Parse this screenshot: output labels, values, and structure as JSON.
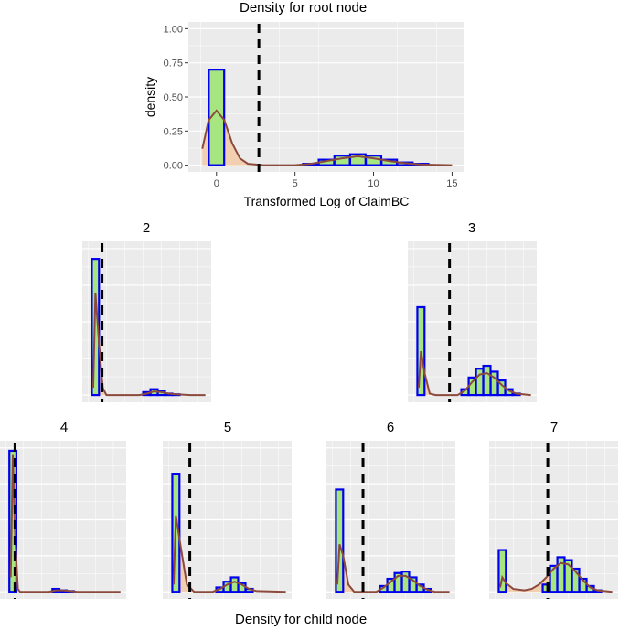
{
  "root": {
    "title": "Density for root node",
    "xlabel": "Transformed Log of ClaimBC",
    "ylabel": "density"
  },
  "footer": {
    "title": "Density for child node"
  },
  "colors": {
    "panel_bg": "#ebebeb",
    "grid": "#ffffff",
    "bar_fill": "#a6e57f",
    "bar_stroke": "#0000ee",
    "density_fill": "#f2ccaa",
    "density_stroke": "#8b4a3c",
    "split_line": "#000000"
  },
  "chart_data": [
    {
      "type": "histogram",
      "panel": "root",
      "title": "Density for root node",
      "xlabel": "Transformed Log of ClaimBC",
      "ylabel": "density",
      "xlim": [
        -1,
        15
      ],
      "ylim": [
        0,
        1
      ],
      "xticks": [
        0,
        5,
        10,
        15
      ],
      "yticks": [
        0,
        0.25,
        0.5,
        0.75,
        1
      ],
      "ytick_labels": [
        "0.00",
        "0.25",
        "0.50",
        "0.75",
        "1.00"
      ],
      "split": 2.7,
      "bins": [
        {
          "x": 0,
          "h": 0.7
        },
        {
          "x": 6,
          "h": 0.01
        },
        {
          "x": 7,
          "h": 0.04
        },
        {
          "x": 8,
          "h": 0.07
        },
        {
          "x": 9,
          "h": 0.08
        },
        {
          "x": 10,
          "h": 0.07
        },
        {
          "x": 11,
          "h": 0.04
        },
        {
          "x": 12,
          "h": 0.02
        },
        {
          "x": 13,
          "h": 0.01
        }
      ],
      "density": [
        [
          -0.9,
          0.12
        ],
        [
          -0.5,
          0.33
        ],
        [
          0,
          0.4
        ],
        [
          0.5,
          0.33
        ],
        [
          1,
          0.16
        ],
        [
          1.5,
          0.05
        ],
        [
          2,
          0.01
        ],
        [
          3,
          0
        ],
        [
          5,
          0
        ],
        [
          6,
          0.01
        ],
        [
          7,
          0.03
        ],
        [
          8,
          0.05
        ],
        [
          9,
          0.065
        ],
        [
          10,
          0.05
        ],
        [
          11,
          0.03
        ],
        [
          12,
          0.015
        ],
        [
          13,
          0.005
        ],
        [
          15,
          0
        ]
      ]
    },
    {
      "type": "histogram",
      "panel": "2",
      "title": "2",
      "xlim": [
        -1,
        15
      ],
      "ylim": [
        0,
        1.0
      ],
      "split": 0.9,
      "bins": [
        {
          "x": 0,
          "h": 0.93
        },
        {
          "x": 7,
          "h": 0.02
        },
        {
          "x": 8,
          "h": 0.04
        },
        {
          "x": 9,
          "h": 0.03
        },
        {
          "x": 10,
          "h": 0.01
        },
        {
          "x": 11,
          "h": 0.005
        }
      ],
      "density": [
        [
          -0.3,
          0.05
        ],
        [
          0,
          0.7
        ],
        [
          0.5,
          0.35
        ],
        [
          1,
          0.05
        ],
        [
          1.5,
          0
        ],
        [
          6,
          0
        ],
        [
          7,
          0.01
        ],
        [
          8,
          0.025
        ],
        [
          9,
          0.02
        ],
        [
          10,
          0.01
        ],
        [
          11,
          0.005
        ],
        [
          13,
          0
        ],
        [
          15,
          0
        ]
      ]
    },
    {
      "type": "histogram",
      "panel": "3",
      "title": "3",
      "xlim": [
        -1,
        15
      ],
      "ylim": [
        0,
        1.0
      ],
      "split": 3.9,
      "bins": [
        {
          "x": 0,
          "h": 0.6
        },
        {
          "x": 6,
          "h": 0.04
        },
        {
          "x": 7,
          "h": 0.12
        },
        {
          "x": 8,
          "h": 0.18
        },
        {
          "x": 9,
          "h": 0.2
        },
        {
          "x": 10,
          "h": 0.16
        },
        {
          "x": 11,
          "h": 0.1
        },
        {
          "x": 12,
          "h": 0.04
        },
        {
          "x": 13,
          "h": 0.01
        }
      ],
      "density": [
        [
          -0.3,
          0.05
        ],
        [
          0,
          0.3
        ],
        [
          0.5,
          0.15
        ],
        [
          1.2,
          0.01
        ],
        [
          2,
          0
        ],
        [
          5,
          0
        ],
        [
          6,
          0.03
        ],
        [
          7,
          0.09
        ],
        [
          8,
          0.14
        ],
        [
          9,
          0.15
        ],
        [
          10,
          0.12
        ],
        [
          11,
          0.07
        ],
        [
          12,
          0.03
        ],
        [
          13,
          0.01
        ],
        [
          15,
          0
        ]
      ]
    },
    {
      "type": "histogram",
      "panel": "4",
      "title": "4",
      "xlim": [
        -1,
        15
      ],
      "ylim": [
        0,
        1.0
      ],
      "split": 0.3,
      "bins": [
        {
          "x": 0,
          "h": 0.98
        },
        {
          "x": 6,
          "h": 0.02
        },
        {
          "x": 7,
          "h": 0.01
        },
        {
          "x": 8,
          "h": 0.005
        }
      ],
      "density": [
        [
          -0.3,
          0.1
        ],
        [
          0,
          0.95
        ],
        [
          0.3,
          0.4
        ],
        [
          0.7,
          0.02
        ],
        [
          1,
          0
        ],
        [
          5,
          0
        ],
        [
          6,
          0.01
        ],
        [
          7,
          0.01
        ],
        [
          8,
          0.005
        ],
        [
          9,
          0
        ],
        [
          15,
          0
        ]
      ]
    },
    {
      "type": "histogram",
      "panel": "5",
      "title": "5",
      "xlim": [
        -1,
        15
      ],
      "ylim": [
        0,
        1.0
      ],
      "split": 1.9,
      "bins": [
        {
          "x": 0,
          "h": 0.82
        },
        {
          "x": 6,
          "h": 0.03
        },
        {
          "x": 7,
          "h": 0.07
        },
        {
          "x": 8,
          "h": 0.1
        },
        {
          "x": 9,
          "h": 0.06
        },
        {
          "x": 10,
          "h": 0.02
        }
      ],
      "density": [
        [
          -0.3,
          0.05
        ],
        [
          0,
          0.53
        ],
        [
          0.7,
          0.3
        ],
        [
          1.5,
          0.05
        ],
        [
          2.5,
          0
        ],
        [
          5,
          0
        ],
        [
          6,
          0.02
        ],
        [
          7,
          0.05
        ],
        [
          8,
          0.07
        ],
        [
          9,
          0.05
        ],
        [
          10,
          0.02
        ],
        [
          11,
          0.005
        ],
        [
          15,
          0
        ]
      ]
    },
    {
      "type": "histogram",
      "panel": "6",
      "title": "6",
      "xlim": [
        -1,
        15
      ],
      "ylim": [
        0,
        1.0
      ],
      "split": 3.2,
      "bins": [
        {
          "x": 0,
          "h": 0.71
        },
        {
          "x": 6,
          "h": 0.04
        },
        {
          "x": 7,
          "h": 0.09
        },
        {
          "x": 8,
          "h": 0.13
        },
        {
          "x": 9,
          "h": 0.14
        },
        {
          "x": 10,
          "h": 0.1
        },
        {
          "x": 11,
          "h": 0.05
        },
        {
          "x": 12,
          "h": 0.02
        }
      ],
      "density": [
        [
          -0.3,
          0.05
        ],
        [
          0,
          0.33
        ],
        [
          0.5,
          0.25
        ],
        [
          1.2,
          0.05
        ],
        [
          2,
          0
        ],
        [
          5,
          0
        ],
        [
          6,
          0.03
        ],
        [
          7,
          0.07
        ],
        [
          8,
          0.11
        ],
        [
          9,
          0.11
        ],
        [
          10,
          0.08
        ],
        [
          11,
          0.04
        ],
        [
          12,
          0.015
        ],
        [
          13,
          0
        ],
        [
          15,
          0
        ]
      ]
    },
    {
      "type": "histogram",
      "panel": "7",
      "title": "7",
      "xlim": [
        -1,
        15
      ],
      "ylim": [
        0,
        1.0
      ],
      "split": 6.2,
      "bins": [
        {
          "x": 0,
          "h": 0.29
        },
        {
          "x": 6,
          "h": 0.05
        },
        {
          "x": 7,
          "h": 0.18
        },
        {
          "x": 8,
          "h": 0.24
        },
        {
          "x": 9,
          "h": 0.22
        },
        {
          "x": 10,
          "h": 0.16
        },
        {
          "x": 11,
          "h": 0.09
        },
        {
          "x": 12,
          "h": 0.04
        },
        {
          "x": 13,
          "h": 0.01
        }
      ],
      "density": [
        [
          -0.3,
          0.03
        ],
        [
          0,
          0.1
        ],
        [
          0.5,
          0.06
        ],
        [
          1.5,
          0.02
        ],
        [
          3,
          0.01
        ],
        [
          4,
          0.02
        ],
        [
          5,
          0.05
        ],
        [
          6,
          0.1
        ],
        [
          7,
          0.16
        ],
        [
          8,
          0.2
        ],
        [
          9,
          0.19
        ],
        [
          10,
          0.14
        ],
        [
          11,
          0.08
        ],
        [
          12,
          0.03
        ],
        [
          13,
          0.01
        ],
        [
          15,
          0
        ]
      ]
    }
  ]
}
